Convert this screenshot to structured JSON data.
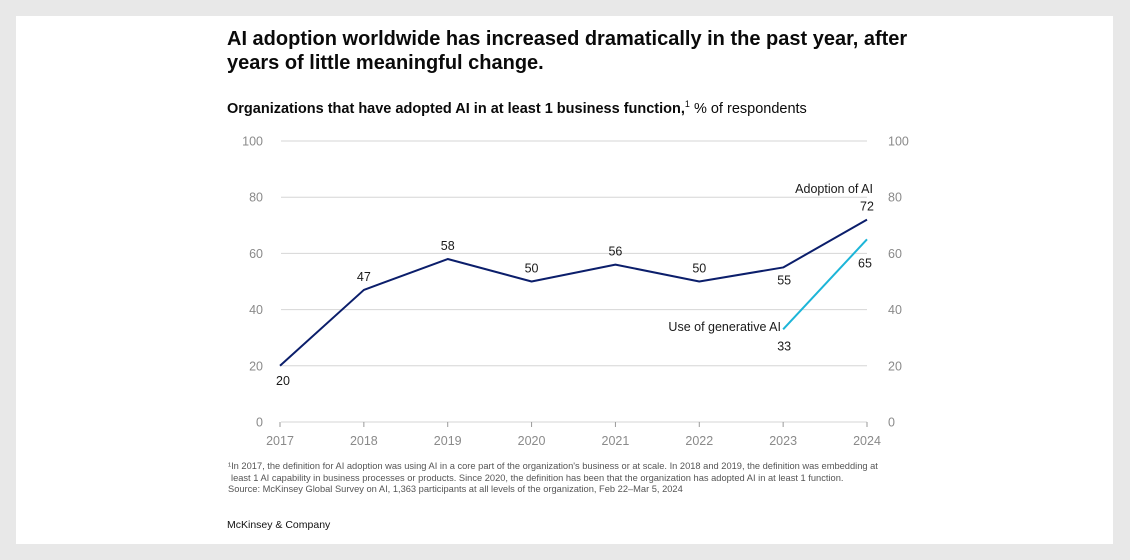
{
  "headline": "AI adoption worldwide has increased dramatically in the past year, after years of little meaningful change.",
  "subtitle": {
    "bold": "Organizations that have adopted AI in at least 1 business function,",
    "sup": "1",
    "rest": " % of respondents"
  },
  "footnotes": {
    "line1": "¹In 2017, the definition for AI adoption was using AI in a core part of the organization's business or at scale. In 2018 and 2019, the definition was embedding at",
    "line2": "least 1 AI capability in business processes or products. Since 2020, the definition has been that the organization has adopted AI in at least 1 function.",
    "source": "Source: McKinsey Global Survey on AI, 1,363 participants at all levels of the organization, Feb 22–Mar 5, 2024"
  },
  "brand": "McKinsey & Company",
  "colors": {
    "adoption": "#0b1e6b",
    "genai": "#1cb5d8",
    "grid": "#d6d6d6",
    "tick": "#8a8a8a"
  },
  "chart_data": {
    "type": "line",
    "x": [
      "2017",
      "2018",
      "2019",
      "2020",
      "2021",
      "2022",
      "2023",
      "2024"
    ],
    "ylim": [
      0,
      100
    ],
    "yticks": [
      0,
      20,
      40,
      60,
      80,
      100
    ],
    "series": [
      {
        "name": "Adoption of AI",
        "values": [
          20,
          47,
          58,
          50,
          56,
          50,
          55,
          72
        ]
      },
      {
        "name": "Use of generative AI",
        "values": [
          null,
          null,
          null,
          null,
          null,
          null,
          33,
          65
        ]
      }
    ],
    "title": "Organizations that have adopted AI in at least 1 business function",
    "ylabel": "% of respondents",
    "xlabel": ""
  }
}
